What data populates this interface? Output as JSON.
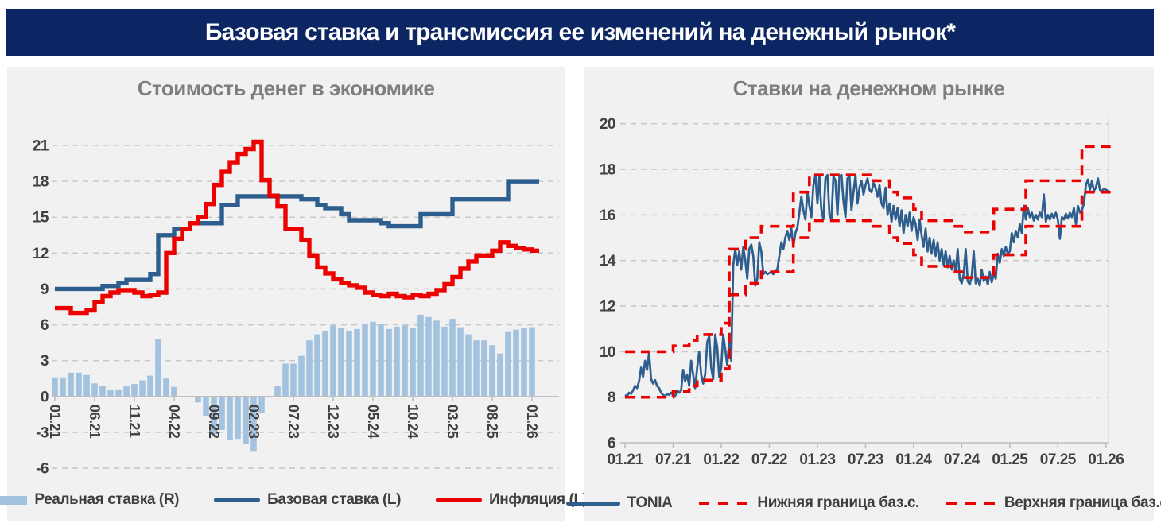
{
  "header": {
    "title": "Базовая ставка и трансмиссия ее изменений на денежный рынок*"
  },
  "colors": {
    "header_bg": "#0c2663",
    "panel_bg": "#f1f1f1",
    "title_text": "#7e7e7e",
    "axis_text": "#404040",
    "grid": "#c9c9c9",
    "axis_line": "#bfbfbf",
    "blue": "#2e5e8e",
    "red": "#ec0000",
    "bar": "#a3c2e0"
  },
  "panels": {
    "left": {
      "title": "Стоимость денег в экономике",
      "legend": [
        {
          "label": "Реальная ставка (R)",
          "swatch": "bar"
        },
        {
          "label": "Базовая ставка (L)",
          "swatch": "line-blue"
        },
        {
          "label": "Инфляция (L)",
          "swatch": "line-red"
        }
      ]
    },
    "right": {
      "title": "Ставки на денежном рынке",
      "legend": [
        {
          "label": "TONIA",
          "swatch": "tonia-blue"
        },
        {
          "label": "Нижняя граница баз.с.",
          "swatch": "dash-red"
        },
        {
          "label": "Верхняя граница баз.с.",
          "swatch": "dash-red"
        }
      ]
    }
  },
  "chart_data": [
    {
      "id": "cost-of-money",
      "type": "bar",
      "subtype": "combo-bar-step-lines",
      "title": "Стоимость денег в экономике",
      "x_unit": "month",
      "x_range": [
        "01.21",
        "01.26"
      ],
      "x_tick_labels": [
        "01.21",
        "06.21",
        "11.21",
        "04.22",
        "09.22",
        "02.23",
        "07.23",
        "12.23",
        "05.24",
        "10.24",
        "03.25",
        "08.25",
        "01.26"
      ],
      "x_tick_positions": [
        0,
        5,
        10,
        15,
        20,
        25,
        30,
        35,
        40,
        45,
        50,
        55,
        60
      ],
      "y_ticks": [
        21,
        18,
        15,
        12,
        9,
        6,
        3,
        0,
        -3,
        -6
      ],
      "grid": true,
      "legend_position": "bottom",
      "series": [
        {
          "name": "Реальная ставка (R)",
          "type": "bar",
          "axis": "R",
          "color": "#a3c2e0",
          "values": [
            1.6,
            1.6,
            2.0,
            2.0,
            1.8,
            1.1,
            0.85,
            0.55,
            0.6,
            0.85,
            1.05,
            1.35,
            1.75,
            4.8,
            1.5,
            0.8,
            0.0,
            0.0,
            -0.5,
            -1.6,
            -3.2,
            -2.8,
            -3.6,
            -3.55,
            -3.95,
            -4.55,
            -1.35,
            -0.05,
            0.85,
            2.75,
            2.75,
            3.4,
            4.7,
            5.2,
            5.45,
            5.95,
            5.75,
            5.45,
            5.65,
            6.05,
            6.25,
            6.1,
            5.65,
            5.85,
            5.95,
            5.75,
            6.85,
            6.65,
            6.35,
            5.85,
            6.5,
            5.8,
            5.2,
            4.7,
            4.7,
            4.3,
            3.6,
            5.4,
            5.6,
            5.7,
            5.8
          ]
        },
        {
          "name": "Базовая ставка (L)",
          "type": "step-line",
          "axis": "L",
          "color": "#2e5e8e",
          "values": [
            9,
            9,
            9,
            9,
            9,
            9,
            9.25,
            9.25,
            9.5,
            9.75,
            9.75,
            9.75,
            10.25,
            13.5,
            13.5,
            14,
            14,
            14.5,
            14.5,
            14.5,
            14.5,
            16,
            16,
            16.75,
            16.75,
            16.75,
            16.75,
            16.75,
            16.75,
            16.75,
            16.75,
            16.5,
            16.5,
            16,
            15.75,
            15.75,
            15.25,
            14.75,
            14.75,
            14.75,
            14.75,
            14.5,
            14.25,
            14.25,
            14.25,
            14.25,
            15.25,
            15.25,
            15.25,
            15.25,
            16.5,
            16.5,
            16.5,
            16.5,
            16.5,
            16.5,
            16.5,
            18,
            18,
            18,
            18
          ]
        },
        {
          "name": "Инфляция (L)",
          "type": "step-line",
          "axis": "L",
          "color": "#ec0000",
          "values": [
            7.4,
            7.4,
            7.0,
            7.0,
            7.2,
            7.9,
            8.4,
            8.7,
            8.9,
            8.9,
            8.7,
            8.4,
            8.5,
            8.7,
            12.0,
            13.2,
            14.0,
            14.5,
            15.0,
            16.1,
            17.7,
            18.8,
            19.6,
            20.3,
            20.7,
            21.3,
            18.1,
            16.8,
            15.9,
            14.0,
            14.0,
            13.1,
            11.8,
            10.8,
            10.3,
            9.8,
            9.5,
            9.3,
            9.1,
            8.7,
            8.5,
            8.4,
            8.6,
            8.4,
            8.3,
            8.5,
            8.4,
            8.6,
            8.9,
            9.4,
            10.0,
            10.7,
            11.3,
            11.8,
            11.8,
            12.2,
            12.9,
            12.6,
            12.4,
            12.3,
            12.2
          ]
        }
      ]
    },
    {
      "id": "money-market-rates",
      "type": "line",
      "title": "Ставки на денежном рынке",
      "x_unit": "month",
      "x_range": [
        "01.21",
        "01.26"
      ],
      "x_tick_labels": [
        "01.21",
        "07.21",
        "01.22",
        "07.22",
        "01.23",
        "07.23",
        "01.24",
        "07.24",
        "01.25",
        "07.25",
        "01.26"
      ],
      "x_tick_positions": [
        0,
        6,
        12,
        18,
        24,
        30,
        36,
        42,
        48,
        54,
        60
      ],
      "y_ticks": [
        20,
        18,
        16,
        14,
        12,
        10,
        8,
        6
      ],
      "ylim": [
        6,
        20
      ],
      "grid": true,
      "legend_position": "bottom",
      "series": [
        {
          "name": "TONIA",
          "type": "line",
          "color": "#2e5e8e",
          "x_start": 0,
          "x_step": 0.25,
          "values": [
            8.1,
            8.05,
            8.2,
            8.15,
            8.3,
            8.5,
            8.4,
            8.7,
            9.3,
            8.9,
            9.6,
            9.2,
            9.95,
            8.8,
            8.6,
            8.75,
            8.5,
            8.4,
            8.2,
            8.1,
            8.05,
            8.15,
            8.1,
            8.2,
            8.1,
            8.05,
            8.3,
            8.2,
            8.3,
            9.2,
            8.7,
            9.0,
            8.5,
            9.6,
            9.0,
            8.4,
            9.3,
            10.0,
            9.0,
            8.6,
            9.0,
            10.4,
            10.7,
            9.3,
            8.8,
            10.75,
            10.2,
            8.9,
            9.3,
            10.75,
            10.1,
            9.4,
            10.5,
            9.6,
            13.8,
            14.5,
            13.8,
            14.4,
            13.6,
            14.6,
            14.0,
            13.2,
            14.5,
            14.7,
            14.2,
            12.9,
            13.2,
            14.8,
            14.4,
            13.4,
            13.5,
            13.4,
            13.45,
            13.5,
            13.4,
            13.5,
            13.6,
            14.2,
            14.8,
            14.5,
            15.0,
            15.3,
            14.9,
            15.4,
            14.6,
            15.2,
            15.45,
            16.1,
            16.8,
            16.2,
            15.8,
            17.0,
            16.4,
            15.9,
            17.3,
            17.75,
            16.5,
            17.7,
            16.2,
            15.8,
            17.6,
            17.75,
            16.0,
            15.8,
            17.7,
            17.5,
            16.0,
            17.7,
            17.75,
            16.6,
            15.9,
            17.6,
            17.7,
            16.2,
            17.0,
            17.75,
            16.5,
            17.2,
            17.5,
            16.9,
            17.3,
            17.6,
            17.1,
            17.0,
            17.4,
            17.2,
            16.8,
            17.3,
            16.5,
            16.3,
            17.2,
            16.0,
            16.5,
            15.7,
            16.4,
            15.8,
            16.3,
            15.5,
            16.2,
            15.2,
            16.0,
            15.5,
            16.1,
            15.3,
            15.9,
            15.6,
            14.9,
            15.8,
            15.1,
            14.6,
            15.4,
            14.4,
            15.0,
            14.3,
            14.9,
            14.2,
            14.8,
            14.0,
            14.5,
            13.8,
            14.4,
            13.7,
            14.2,
            13.6,
            14.0,
            13.5,
            14.5,
            13.2,
            13.0,
            13.4,
            14.5,
            13.1,
            12.95,
            13.3,
            14.4,
            13.0,
            13.2,
            12.9,
            13.6,
            13.1,
            13.3,
            12.95,
            13.5,
            13.05,
            13.4,
            13.2,
            14.3,
            13.9,
            14.5,
            14.2,
            14.6,
            14.3,
            14.4,
            15.2,
            14.8,
            15.3,
            15.0,
            15.6,
            15.2,
            16.4,
            15.8,
            16.3,
            15.9,
            16.1,
            15.75,
            16.0,
            15.8,
            16.1,
            15.9,
            16.9,
            15.7,
            16.0,
            15.8,
            16.05,
            15.85,
            16.1,
            15.8,
            14.95,
            15.9,
            15.8,
            16.05,
            15.85,
            16.1,
            15.9,
            16.3,
            15.6,
            16.4,
            16.1,
            16.2,
            16.5,
            17.3,
            17.55,
            17.1,
            17.5,
            17.05,
            17.2,
            17.6,
            17.1,
            17.05,
            17.15,
            17.1,
            17.05
          ]
        },
        {
          "name": "Нижняя граница баз.с.",
          "type": "step-dashed",
          "color": "#ec0000",
          "values": [
            8,
            8,
            8,
            8,
            8,
            8,
            8.25,
            8.25,
            8.5,
            8.75,
            8.75,
            8.75,
            9.25,
            12.5,
            12.5,
            13,
            13,
            13.5,
            13.5,
            13.5,
            13.5,
            15,
            15,
            15.75,
            15.75,
            15.75,
            15.75,
            15.75,
            15.75,
            15.75,
            15.75,
            15.5,
            15.5,
            15,
            14.75,
            14.75,
            14.25,
            13.75,
            13.75,
            13.75,
            13.75,
            13.5,
            13.25,
            13.25,
            13.25,
            13.25,
            14.25,
            14.25,
            14.25,
            14.25,
            15.5,
            15.5,
            15.5,
            15.5,
            15.5,
            15.5,
            15.5,
            17,
            17,
            17,
            17
          ]
        },
        {
          "name": "Верхняя граница баз.с.",
          "type": "step-dashed",
          "color": "#ec0000",
          "values": [
            10,
            10,
            10,
            10,
            10,
            10,
            10.25,
            10.25,
            10.5,
            10.75,
            10.75,
            10.75,
            11.25,
            14.5,
            14.5,
            15,
            15,
            15.5,
            15.5,
            15.5,
            15.5,
            17,
            17,
            17.75,
            17.75,
            17.75,
            17.75,
            17.75,
            17.75,
            17.75,
            17.75,
            17.5,
            17.5,
            17,
            16.75,
            16.75,
            16.25,
            15.75,
            15.75,
            15.75,
            15.75,
            15.5,
            15.25,
            15.25,
            15.25,
            15.25,
            16.25,
            16.25,
            16.25,
            16.25,
            17.5,
            17.5,
            17.5,
            17.5,
            17.5,
            17.5,
            17.5,
            19,
            19,
            19,
            19
          ]
        }
      ]
    }
  ]
}
